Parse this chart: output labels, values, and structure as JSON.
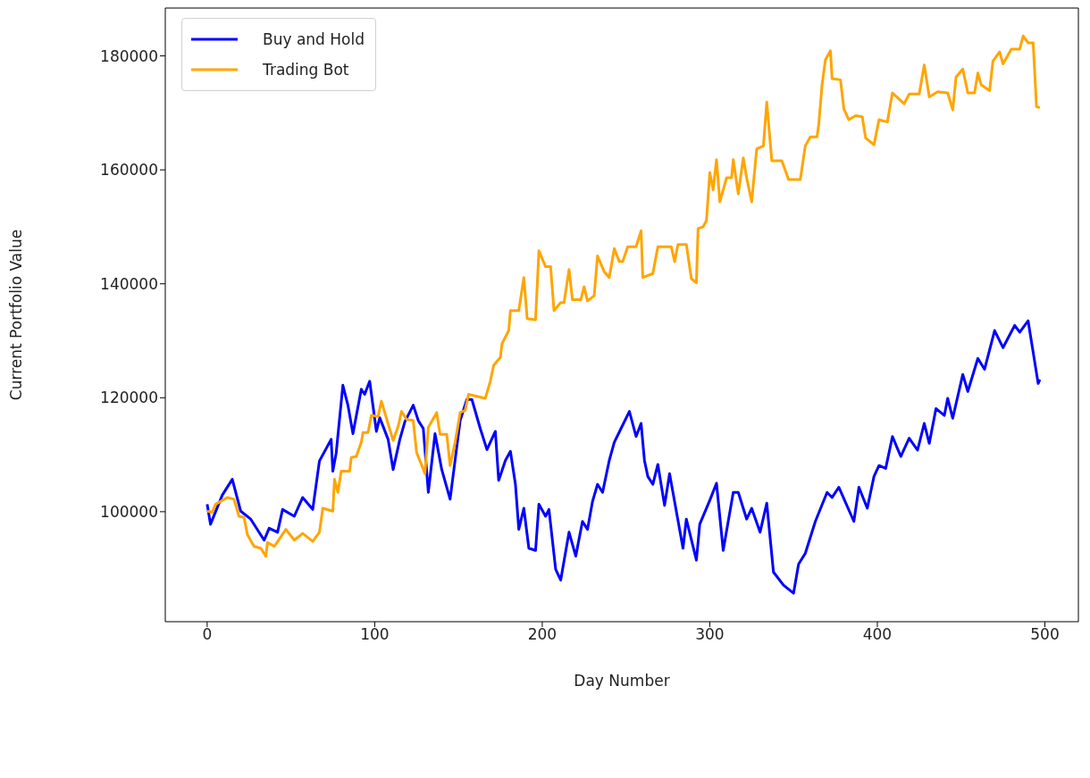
{
  "chart_data": {
    "type": "line",
    "xlabel": "Day Number",
    "ylabel": "Current Portfolio Value",
    "xlim": [
      -25,
      520
    ],
    "ylim": [
      80700,
      188400
    ],
    "xticks": [
      0,
      100,
      200,
      300,
      400,
      500
    ],
    "yticks": [
      100000,
      120000,
      140000,
      160000,
      180000
    ],
    "legend": "top left",
    "line_style": "solid",
    "series": [
      {
        "name": "Buy and Hold",
        "color": "#0000ff",
        "x": [
          0,
          2,
          9,
          15,
          20,
          26,
          34,
          37,
          42,
          45,
          52,
          57,
          63,
          67,
          74,
          75,
          77,
          81,
          84,
          87,
          92,
          94,
          97,
          101,
          103,
          108,
          111,
          115,
          118,
          123,
          126,
          129,
          132,
          136,
          140,
          145,
          151,
          155,
          158,
          163,
          167,
          172,
          174,
          178,
          181,
          184,
          186,
          189,
          192,
          196,
          198,
          202,
          204,
          208,
          211,
          216,
          220,
          224,
          227,
          230,
          233,
          236,
          240,
          243,
          247,
          252,
          256,
          259,
          261,
          263,
          266,
          269,
          273,
          276,
          278,
          284,
          286,
          292,
          294,
          300,
          304,
          308,
          314,
          317,
          322,
          325,
          330,
          334,
          338,
          344,
          350,
          353,
          357,
          363,
          370,
          373,
          377,
          386,
          389,
          394,
          398,
          401,
          405,
          409,
          414,
          419,
          424,
          428,
          431,
          435,
          440,
          442,
          445,
          451,
          454,
          460,
          464,
          470,
          475,
          482,
          485,
          490,
          496,
          497
        ],
        "values": [
          101300,
          97800,
          102900,
          105700,
          100100,
          98700,
          95000,
          97100,
          96400,
          100400,
          99200,
          102500,
          100400,
          108900,
          112700,
          107100,
          110300,
          122200,
          118700,
          113700,
          121500,
          120600,
          122900,
          114100,
          116500,
          112700,
          107400,
          112700,
          115800,
          118700,
          116000,
          114600,
          103400,
          113700,
          107400,
          102200,
          116000,
          119700,
          119700,
          114600,
          110900,
          114100,
          105500,
          109000,
          110600,
          104800,
          96900,
          100600,
          93600,
          93200,
          101300,
          99200,
          100400,
          89900,
          88000,
          96400,
          92200,
          98300,
          96900,
          101800,
          104800,
          103400,
          109000,
          112200,
          114600,
          117600,
          113200,
          115500,
          109000,
          106200,
          104800,
          108300,
          101100,
          106700,
          103400,
          93600,
          98700,
          91500,
          97800,
          102000,
          105000,
          93200,
          103400,
          103400,
          98700,
          100600,
          96400,
          101500,
          89400,
          87100,
          85700,
          90800,
          92700,
          98300,
          103400,
          102500,
          104300,
          98300,
          104300,
          100600,
          106200,
          108100,
          107600,
          113200,
          109700,
          112900,
          110800,
          115500,
          112000,
          118100,
          116900,
          119900,
          116400,
          124100,
          121100,
          126900,
          125000,
          131800,
          128800,
          132700,
          131500,
          133500,
          122500,
          123200
        ]
      },
      {
        "name": "Trading Bot",
        "color": "#ffa500",
        "x": [
          0,
          3,
          5,
          12,
          16,
          19,
          22,
          24,
          28,
          32,
          35,
          36,
          40,
          47,
          52,
          57,
          63,
          67,
          69,
          75,
          76,
          78,
          80,
          85,
          86,
          89,
          92,
          93,
          96,
          98,
          102,
          104,
          107,
          111,
          114,
          116,
          119,
          123,
          125,
          130,
          132,
          137,
          139,
          143,
          145,
          148,
          151,
          154,
          156,
          166,
          169,
          171,
          175,
          176,
          180,
          181,
          186,
          189,
          191,
          196,
          198,
          202,
          205,
          207,
          211,
          213,
          216,
          218,
          223,
          225,
          227,
          231,
          233,
          237,
          240,
          243,
          246,
          248,
          251,
          256,
          259,
          260,
          266,
          269,
          277,
          279,
          281,
          286,
          289,
          292,
          293,
          296,
          298,
          300,
          302,
          304,
          306,
          310,
          313,
          314,
          317,
          320,
          322,
          325,
          328,
          332,
          334,
          337,
          343,
          347,
          354,
          357,
          360,
          364,
          365,
          367,
          369,
          372,
          373,
          378,
          380,
          383,
          387,
          391,
          393,
          398,
          401,
          406,
          409,
          416,
          419,
          425,
          428,
          431,
          436,
          442,
          445,
          447,
          451,
          454,
          458,
          460,
          462,
          467,
          469,
          473,
          475,
          480,
          485,
          487,
          490,
          493,
          495,
          497
        ],
        "values": [
          100100,
          99900,
          101300,
          102500,
          102200,
          99200,
          99000,
          96000,
          93900,
          93600,
          92200,
          94600,
          93900,
          96900,
          95000,
          96200,
          94800,
          96400,
          100600,
          100100,
          105700,
          103400,
          107100,
          107100,
          109500,
          109700,
          112200,
          113900,
          113900,
          116900,
          116700,
          119400,
          116400,
          112500,
          115000,
          117600,
          116200,
          116000,
          110400,
          106700,
          114800,
          117400,
          113600,
          113600,
          108100,
          112200,
          117400,
          117800,
          120600,
          119900,
          122900,
          125700,
          127100,
          129500,
          131800,
          135300,
          135300,
          141100,
          133900,
          133700,
          145800,
          143000,
          143000,
          135300,
          136700,
          136700,
          142500,
          137200,
          137200,
          139500,
          137000,
          137900,
          144900,
          142100,
          141100,
          146200,
          143900,
          143900,
          146500,
          146500,
          149300,
          141100,
          141800,
          146500,
          146500,
          143900,
          146900,
          146900,
          140900,
          140200,
          149700,
          150000,
          151100,
          159500,
          156500,
          161800,
          154400,
          158600,
          158600,
          161800,
          155800,
          162100,
          158600,
          154400,
          163700,
          164200,
          171900,
          161600,
          161600,
          158300,
          158300,
          164200,
          165800,
          165800,
          167900,
          174900,
          179300,
          180900,
          176000,
          175800,
          170700,
          168800,
          169500,
          169300,
          165600,
          164400,
          168800,
          168400,
          173500,
          171600,
          173300,
          173300,
          178400,
          172800,
          173700,
          173500,
          170500,
          176300,
          177700,
          173500,
          173500,
          177000,
          174900,
          173900,
          179100,
          180700,
          178600,
          181200,
          181200,
          183500,
          182300,
          182300,
          171100,
          170900
        ]
      }
    ]
  }
}
